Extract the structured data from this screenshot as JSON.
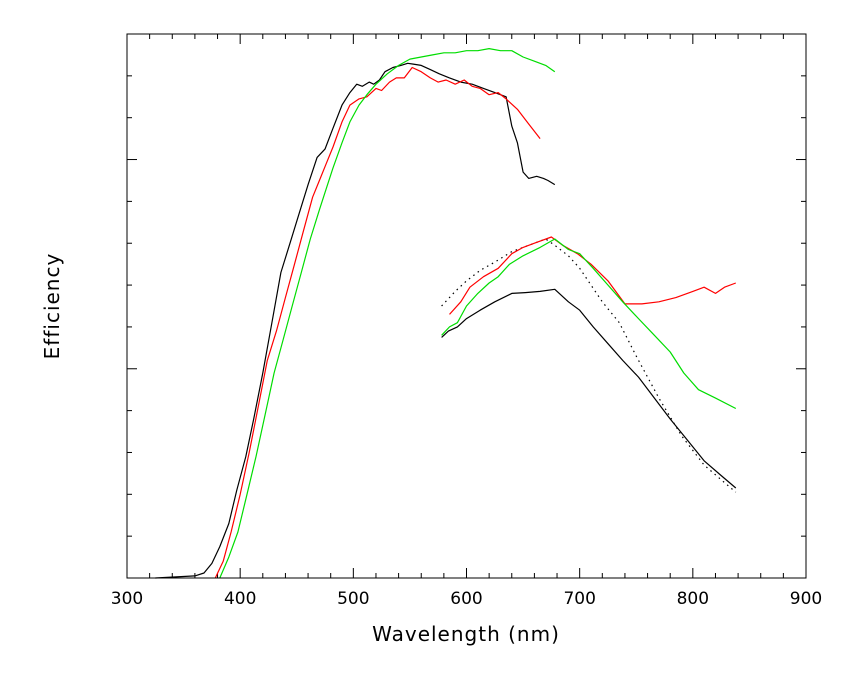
{
  "chart_data": {
    "type": "line",
    "title": "",
    "xlabel": "Wavelength (nm)",
    "ylabel": "Efficiency",
    "xlim": [
      300,
      900
    ],
    "ylim": [
      0,
      13
    ],
    "x_ticks": [
      "300",
      "400",
      "500",
      "600",
      "700",
      "800",
      "900"
    ],
    "y_tick_labels_shown": false,
    "grid": false,
    "legend": "none",
    "series": [
      {
        "color": "#000000",
        "style": "solid",
        "x": [
          325,
          360,
          368,
          375,
          382,
          390,
          397,
          405,
          412,
          420,
          428,
          436,
          444,
          452,
          460,
          468,
          475,
          482,
          490,
          497,
          503,
          508,
          514,
          518,
          523,
          528,
          535,
          542,
          548,
          553,
          560,
          568,
          576,
          585,
          595,
          605,
          615,
          625,
          635,
          640,
          645,
          650,
          655,
          662,
          668,
          672,
          678
        ],
        "y": [
          0.0,
          0.05,
          0.12,
          0.35,
          0.75,
          1.3,
          2.1,
          2.9,
          3.8,
          4.9,
          6.1,
          7.3,
          8.0,
          8.7,
          9.4,
          10.05,
          10.25,
          10.75,
          11.3,
          11.6,
          11.8,
          11.75,
          11.85,
          11.8,
          11.9,
          12.1,
          12.2,
          12.25,
          12.3,
          12.28,
          12.25,
          12.15,
          12.05,
          11.95,
          11.85,
          11.8,
          11.7,
          11.6,
          11.5,
          10.8,
          10.4,
          9.7,
          9.55,
          9.6,
          9.55,
          9.5,
          9.4
        ]
      },
      {
        "color": "#ff0000",
        "style": "solid",
        "x": [
          378,
          385,
          392,
          400,
          408,
          416,
          424,
          432,
          440,
          448,
          456,
          464,
          470,
          476,
          482,
          490,
          497,
          505,
          512,
          520,
          525,
          532,
          538,
          545,
          552,
          560,
          568,
          575,
          582,
          590,
          598,
          605,
          612,
          620,
          628,
          635,
          645,
          655,
          665
        ],
        "y": [
          0.0,
          0.4,
          1.1,
          2.0,
          3.0,
          4.1,
          5.2,
          5.9,
          6.7,
          7.5,
          8.3,
          9.1,
          9.5,
          9.9,
          10.3,
          10.9,
          11.3,
          11.45,
          11.5,
          11.7,
          11.65,
          11.85,
          11.95,
          11.95,
          12.2,
          12.1,
          11.95,
          11.85,
          11.9,
          11.8,
          11.9,
          11.75,
          11.7,
          11.55,
          11.6,
          11.45,
          11.2,
          10.85,
          10.5
        ]
      },
      {
        "color": "#00dd00",
        "style": "solid",
        "x": [
          382,
          390,
          398,
          406,
          414,
          422,
          430,
          438,
          446,
          454,
          462,
          470,
          476,
          482,
          490,
          497,
          505,
          512,
          520,
          530,
          540,
          550,
          560,
          570,
          580,
          590,
          600,
          610,
          620,
          630,
          640,
          650,
          660,
          670,
          678
        ],
        "y": [
          0.0,
          0.5,
          1.1,
          2.0,
          2.9,
          3.9,
          4.9,
          5.7,
          6.5,
          7.3,
          8.1,
          8.8,
          9.3,
          9.8,
          10.4,
          10.9,
          11.3,
          11.55,
          11.8,
          12.05,
          12.25,
          12.4,
          12.45,
          12.5,
          12.55,
          12.55,
          12.6,
          12.6,
          12.65,
          12.6,
          12.6,
          12.45,
          12.35,
          12.25,
          12.1
        ]
      },
      {
        "color": "#000000",
        "style": "dotted",
        "x": [
          578,
          590,
          600,
          612,
          625,
          640,
          655,
          670,
          678,
          690,
          700,
          710,
          720,
          735,
          750,
          770,
          790,
          810,
          825,
          838
        ],
        "y": [
          6.5,
          6.85,
          7.1,
          7.35,
          7.55,
          7.8,
          7.95,
          8.1,
          7.95,
          7.7,
          7.4,
          7.0,
          6.6,
          6.1,
          5.3,
          4.3,
          3.4,
          2.7,
          2.35,
          2.05
        ]
      },
      {
        "color": "#000000",
        "style": "solid",
        "x": [
          578,
          584,
          592,
          600,
          612,
          625,
          640,
          652,
          665,
          678,
          690,
          700,
          712,
          725,
          738,
          752,
          766,
          780,
          795,
          810,
          825,
          838
        ],
        "y": [
          5.75,
          5.9,
          6.0,
          6.2,
          6.4,
          6.6,
          6.8,
          6.82,
          6.85,
          6.9,
          6.6,
          6.4,
          6.0,
          5.6,
          5.2,
          4.8,
          4.3,
          3.8,
          3.3,
          2.8,
          2.45,
          2.15
        ]
      },
      {
        "color": "#ff0000",
        "style": "solid",
        "x": [
          585,
          595,
          603,
          615,
          628,
          640,
          650,
          660,
          675,
          685,
          698,
          710,
          725,
          740,
          755,
          770,
          785,
          800,
          810,
          820,
          828,
          838
        ],
        "y": [
          6.3,
          6.6,
          6.95,
          7.2,
          7.4,
          7.75,
          7.9,
          8.0,
          8.15,
          7.95,
          7.75,
          7.5,
          7.1,
          6.55,
          6.55,
          6.6,
          6.7,
          6.85,
          6.95,
          6.8,
          6.95,
          7.05
        ]
      },
      {
        "color": "#00dd00",
        "style": "solid",
        "x": [
          578,
          585,
          592,
          600,
          610,
          620,
          628,
          638,
          650,
          665,
          678,
          690,
          700,
          712,
          725,
          738,
          752,
          766,
          780,
          792,
          805,
          820,
          838
        ],
        "y": [
          5.8,
          6.0,
          6.1,
          6.5,
          6.8,
          7.05,
          7.2,
          7.5,
          7.7,
          7.9,
          8.1,
          7.85,
          7.75,
          7.4,
          7.0,
          6.6,
          6.2,
          5.8,
          5.4,
          4.9,
          4.5,
          4.3,
          4.05
        ]
      }
    ]
  }
}
